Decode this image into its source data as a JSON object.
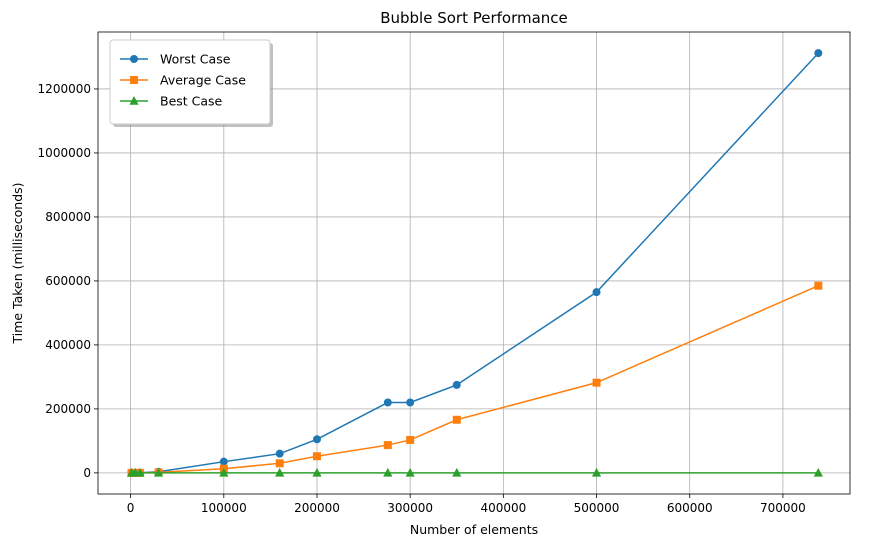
{
  "chart_data": {
    "type": "line",
    "title": "Bubble Sort Performance",
    "xlabel": "Number of elements",
    "ylabel": "Time Taken (milliseconds)",
    "xlim": [
      -35000,
      772000
    ],
    "ylim": [
      -66000,
      1378000
    ],
    "xticks": [
      0,
      100000,
      200000,
      300000,
      400000,
      500000,
      600000,
      700000
    ],
    "xtick_labels": [
      "0",
      "100000",
      "200000",
      "300000",
      "400000",
      "500000",
      "600000",
      "700000"
    ],
    "yticks": [
      0,
      200000,
      400000,
      600000,
      800000,
      1000000,
      1200000
    ],
    "ytick_labels": [
      "0",
      "200000",
      "400000",
      "600000",
      "800000",
      "1000000",
      "1200000"
    ],
    "grid": true,
    "legend_position": "top-left",
    "x": [
      1000,
      5000,
      10000,
      30000,
      100000,
      160000,
      200000,
      276000,
      300000,
      350000,
      500000,
      738000
    ],
    "series": [
      {
        "name": "Worst Case",
        "color": "#1f77b4",
        "marker": "circle",
        "values": [
          0,
          100,
          400,
          3500,
          35000,
          60000,
          105000,
          220000,
          220000,
          275000,
          565000,
          1312000
        ]
      },
      {
        "name": "Average Case",
        "color": "#ff7f0e",
        "marker": "square",
        "values": [
          0,
          50,
          200,
          1500,
          13000,
          30000,
          52000,
          87000,
          103000,
          166000,
          282000,
          585000
        ]
      },
      {
        "name": "Best Case",
        "color": "#2ca02c",
        "marker": "triangle",
        "values": [
          0,
          0,
          0,
          0,
          0,
          0,
          0,
          0,
          0,
          0,
          0,
          0
        ]
      }
    ]
  }
}
